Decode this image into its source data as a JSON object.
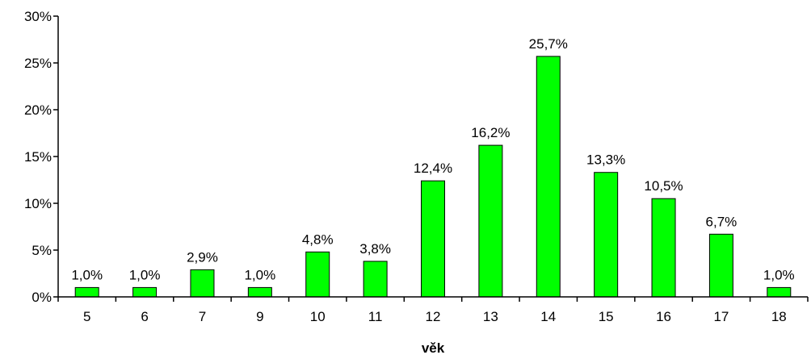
{
  "chart_data": {
    "type": "bar",
    "title": "",
    "xlabel": "věk",
    "ylabel": "",
    "categories": [
      "5",
      "6",
      "7",
      "9",
      "10",
      "11",
      "12",
      "13",
      "14",
      "15",
      "16",
      "17",
      "18"
    ],
    "values": [
      1.0,
      1.0,
      2.9,
      1.0,
      4.8,
      3.8,
      12.4,
      16.2,
      25.7,
      13.3,
      10.5,
      6.7,
      1.0
    ],
    "data_labels": [
      "1,0%",
      "1,0%",
      "2,9%",
      "1,0%",
      "4,8%",
      "3,8%",
      "12,4%",
      "16,2%",
      "25,7%",
      "13,3%",
      "10,5%",
      "6,7%",
      "1,0%"
    ],
    "ylim": [
      0,
      30
    ],
    "yticks": [
      0,
      5,
      10,
      15,
      20,
      25,
      30
    ],
    "ytick_labels": [
      "0%",
      "5%",
      "10%",
      "15%",
      "20%",
      "25%",
      "30%"
    ],
    "grid": false,
    "legend": "none",
    "colors": {
      "bar_fill": "#00ff00",
      "bar_stroke": "#000000",
      "axis": "#000000"
    }
  }
}
